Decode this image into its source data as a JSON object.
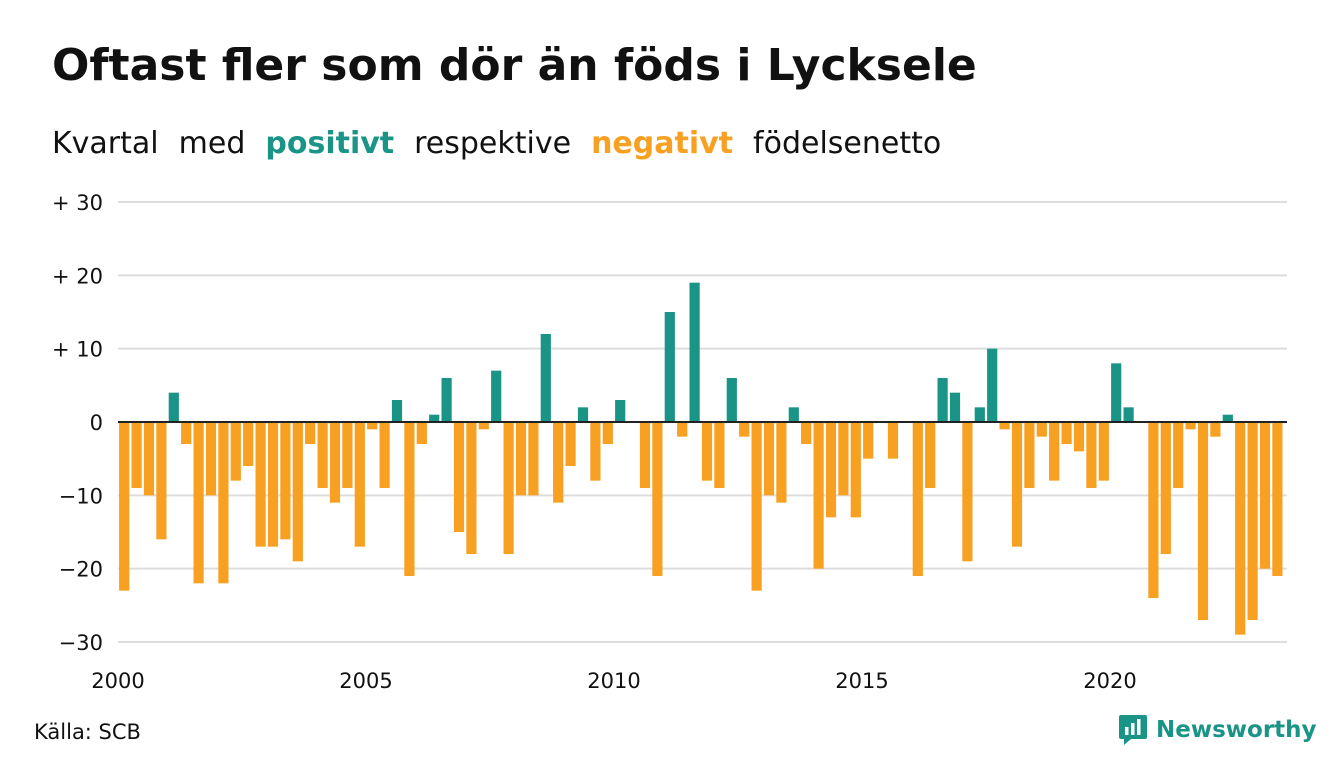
{
  "title": "Oftast fler som dör än föds i Lycksele",
  "subtitle": {
    "part1": "Kvartal",
    "part2": "med",
    "positive_word": "positivt",
    "part3": "respektive",
    "negative_word": "negativt",
    "part4": "födelsenetto"
  },
  "source": "Källa: SCB",
  "brand": {
    "name": "Newsworthy",
    "icon": "newsworthy-logo-icon"
  },
  "colors": {
    "positive": "#1a9486",
    "negative": "#f7a021",
    "grid": "#dddddd",
    "zero_line": "#222222",
    "text": "#111111"
  },
  "chart_data": {
    "type": "bar",
    "granularity": "quarter",
    "start": "2000 Q1",
    "x_tick_labels": [
      "2000",
      "2005",
      "2010",
      "2015",
      "2020"
    ],
    "y_ticks": [
      30,
      20,
      10,
      0,
      -10,
      -20,
      -30
    ],
    "y_tick_labels": [
      "+ 30",
      "+ 20",
      "+ 10",
      "0",
      "−10",
      "−20",
      "−30"
    ],
    "ylim": [
      -30,
      30
    ],
    "grid": true,
    "values": [
      -23,
      -9,
      -10,
      -16,
      4,
      -3,
      -22,
      -10,
      -22,
      -8,
      -6,
      -17,
      -17,
      -16,
      -19,
      -3,
      -9,
      -11,
      -9,
      -17,
      -1,
      -9,
      3,
      -21,
      -3,
      1,
      6,
      -15,
      -18,
      -1,
      7,
      -18,
      -10,
      -10,
      12,
      -11,
      -6,
      2,
      -8,
      -3,
      3,
      0,
      -9,
      -21,
      15,
      -2,
      19,
      -8,
      -9,
      6,
      -2,
      -23,
      -10,
      -11,
      2,
      -3,
      -20,
      -13,
      -10,
      -13,
      -5,
      0,
      -5,
      0,
      -21,
      -9,
      6,
      4,
      -19,
      2,
      10,
      -1,
      -17,
      -9,
      -2,
      -8,
      -3,
      -4,
      -9,
      -8,
      8,
      2,
      0,
      -24,
      -18,
      -9,
      -1,
      -27,
      -2,
      1,
      -29,
      -27,
      -20,
      -21
    ]
  }
}
